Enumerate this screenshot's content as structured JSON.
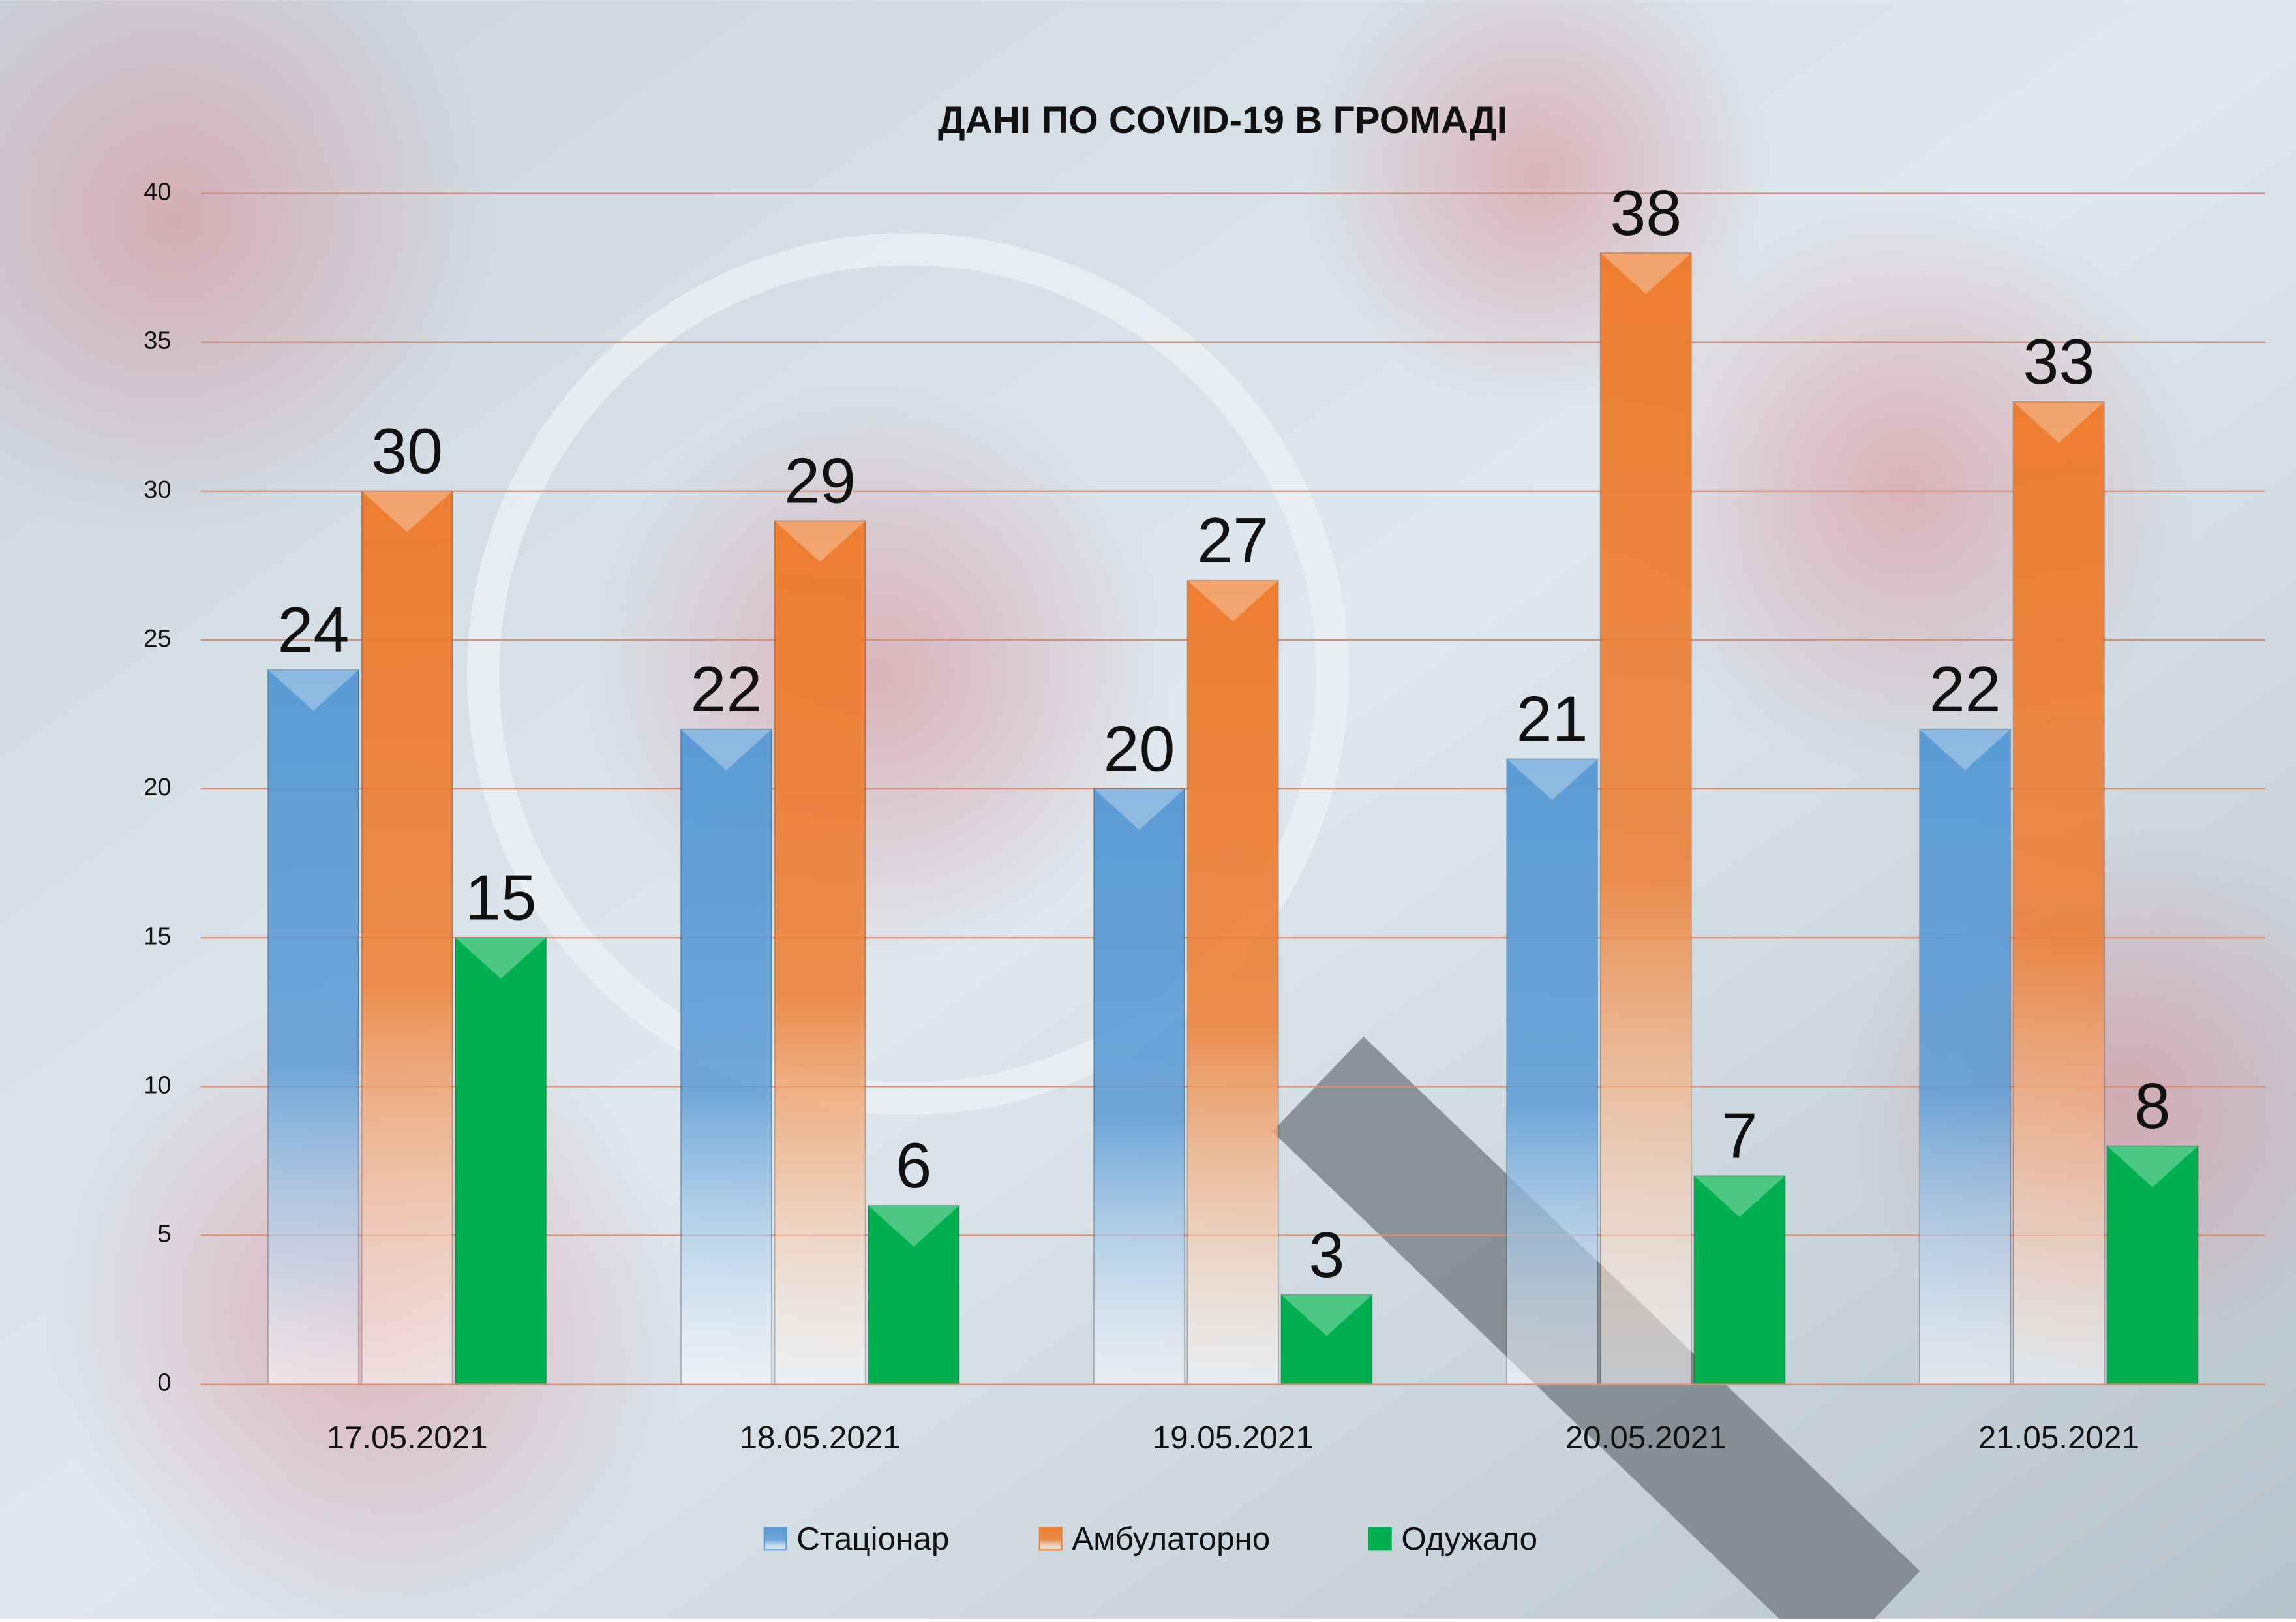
{
  "chart_data": {
    "type": "bar",
    "title": "ДАНІ ПО COVID-19 В ГРОМАДІ",
    "categories": [
      "17.05.2021",
      "18.05.2021",
      "19.05.2021",
      "20.05.2021",
      "21.05.2021"
    ],
    "series": [
      {
        "name": "Стаціонар",
        "color": "#5b9bd5",
        "values": [
          24,
          22,
          20,
          21,
          22
        ]
      },
      {
        "name": "Амбулаторно",
        "color": "#ed7d31",
        "values": [
          30,
          29,
          27,
          38,
          33
        ]
      },
      {
        "name": "Одужало",
        "color": "#00b050",
        "values": [
          15,
          6,
          3,
          7,
          8
        ]
      }
    ],
    "ylim": [
      0,
      40
    ],
    "yticks": [
      0,
      5,
      10,
      15,
      20,
      25,
      30,
      35,
      40
    ],
    "grid": true,
    "legend": "bottom"
  }
}
